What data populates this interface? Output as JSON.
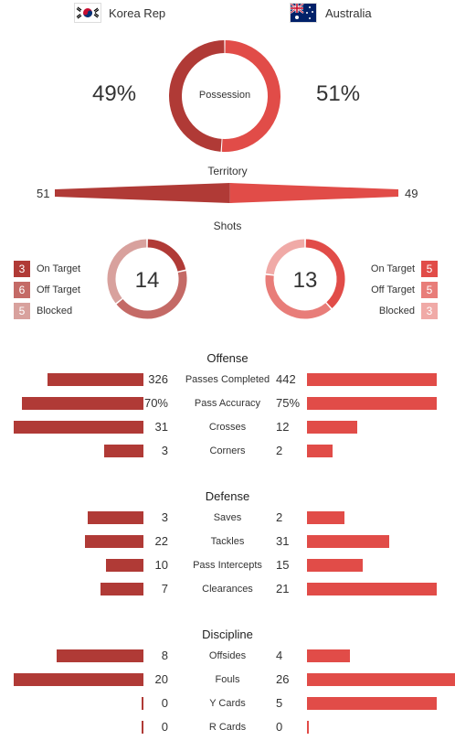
{
  "colors": {
    "home_dark": "#b03a36",
    "home_mid": "#c46a66",
    "home_light": "#d8a19d",
    "away_dark": "#e14c48",
    "away_mid": "#e87d79",
    "away_light": "#f0aaa7"
  },
  "teams": {
    "home": {
      "name": "Korea Rep",
      "flag_icon": "south-korea-flag-icon"
    },
    "away": {
      "name": "Australia",
      "flag_icon": "australia-flag-icon"
    }
  },
  "possession": {
    "label": "Possession",
    "home": 49,
    "away": 51,
    "home_text": "49%",
    "away_text": "51%"
  },
  "territory": {
    "label": "Territory",
    "home": 51,
    "away": 49,
    "home_text": "51",
    "away_text": "49"
  },
  "shots": {
    "label": "Shots",
    "home": {
      "total": "14",
      "on_target": 3,
      "off_target": 6,
      "blocked": 5
    },
    "away": {
      "total": "13",
      "on_target": 5,
      "off_target": 5,
      "blocked": 3
    },
    "labels": {
      "on_target": "On Target",
      "off_target": "Off Target",
      "blocked": "Blocked"
    }
  },
  "sections": [
    {
      "title": "Offense",
      "rows": [
        {
          "label": "Passes Completed",
          "home": 326,
          "away": 442,
          "home_text": "326",
          "away_text": "442",
          "max": 442
        },
        {
          "label": "Pass Accuracy",
          "home": 70,
          "away": 75,
          "home_text": "70%",
          "away_text": "75%",
          "max": 75
        },
        {
          "label": "Crosses",
          "home": 31,
          "away": 12,
          "home_text": "31",
          "away_text": "12",
          "max": 31
        },
        {
          "label": "Corners",
          "home": 3,
          "away": 2,
          "home_text": "3",
          "away_text": "2",
          "max": 10
        }
      ]
    },
    {
      "title": "Defense",
      "rows": [
        {
          "label": "Saves",
          "home": 3,
          "away": 2,
          "home_text": "3",
          "away_text": "2",
          "max": 7
        },
        {
          "label": "Tackles",
          "home": 22,
          "away": 31,
          "home_text": "22",
          "away_text": "31",
          "max": 49
        },
        {
          "label": "Pass Intercepts",
          "home": 10,
          "away": 15,
          "home_text": "10",
          "away_text": "15",
          "max": 35
        },
        {
          "label": "Clearances",
          "home": 7,
          "away": 21,
          "home_text": "7",
          "away_text": "21",
          "max": 21
        }
      ]
    },
    {
      "title": "Discipline",
      "rows": [
        {
          "label": "Offsides",
          "home": 8,
          "away": 4,
          "home_text": "8",
          "away_text": "4",
          "max": 12
        },
        {
          "label": "Fouls",
          "home": 20,
          "away": 26,
          "home_text": "20",
          "away_text": "26",
          "max": 20
        },
        {
          "label": "Y Cards",
          "home": 0,
          "away": 5,
          "home_text": "0",
          "away_text": "5",
          "max": 5
        },
        {
          "label": "R Cards",
          "home": 0,
          "away": 0,
          "home_text": "0",
          "away_text": "0",
          "max": 1
        }
      ]
    }
  ]
}
